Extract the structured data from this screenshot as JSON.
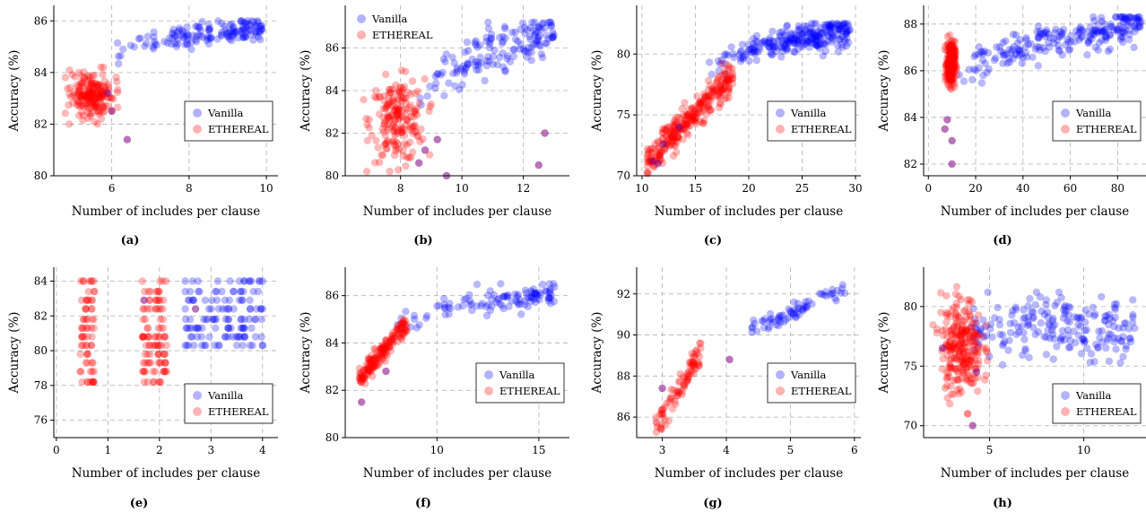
{
  "colors": {
    "vanilla": "#0000ff",
    "ethereal": "#ff0000",
    "grid": "#b0b0b0"
  },
  "chart_data": [
    {
      "type": "scatter",
      "caption": "(a)",
      "xlabel": "Number of includes per clause",
      "ylabel": "Accuracy (%)",
      "xlim": [
        4.5,
        10.3
      ],
      "ylim": [
        80,
        86.6
      ],
      "xticks": [
        6,
        8,
        10
      ],
      "yticks": [
        80,
        82,
        84,
        86
      ],
      "legend_loc": "center-right",
      "series": [
        {
          "name": "Vanilla",
          "color": "#0000ff",
          "cloud": {
            "n": 150,
            "x": [
              6.0,
              9.9
            ],
            "y": [
              83.8,
              86.0
            ],
            "shape": "log"
          }
        },
        {
          "name": "ETHEREAL",
          "color": "#ff0000",
          "cloud": {
            "n": 200,
            "x": [
              4.8,
              6.2
            ],
            "y": [
              82.0,
              84.2
            ],
            "shape": "blob"
          }
        }
      ],
      "outliers": [
        [
          6.4,
          81.4
        ],
        [
          5.9,
          83.2
        ],
        [
          6.0,
          82.5
        ]
      ]
    },
    {
      "type": "scatter",
      "caption": "(b)",
      "xlabel": "Number of includes per clause",
      "ylabel": "Accuracy (%)",
      "xlim": [
        6.2,
        13.5
      ],
      "ylim": [
        80,
        88
      ],
      "xticks": [
        8,
        10,
        12
      ],
      "yticks": [
        80,
        82,
        84,
        86
      ],
      "legend_loc": "top-left",
      "series": [
        {
          "name": "Vanilla",
          "color": "#0000ff",
          "cloud": {
            "n": 150,
            "x": [
              8.5,
              13.0
            ],
            "y": [
              81.5,
              87.2
            ],
            "shape": "log"
          }
        },
        {
          "name": "ETHEREAL",
          "color": "#ff0000",
          "cloud": {
            "n": 190,
            "x": [
              6.8,
              9.0
            ],
            "y": [
              80.2,
              85.0
            ],
            "shape": "blob"
          }
        }
      ],
      "outliers": [
        [
          8.8,
          81.2
        ],
        [
          8.6,
          80.6
        ],
        [
          12.5,
          80.5
        ],
        [
          9.5,
          80.0
        ],
        [
          12.7,
          82.0
        ],
        [
          9.2,
          81.7
        ]
      ]
    },
    {
      "type": "scatter",
      "caption": "(c)",
      "xlabel": "Number of includes per clause",
      "ylabel": "Accuracy (%)",
      "xlim": [
        9.5,
        30.5
      ],
      "ylim": [
        70,
        84
      ],
      "xticks": [
        10,
        15,
        20,
        25,
        30
      ],
      "yticks": [
        70,
        75,
        80
      ],
      "legend_loc": "center-right",
      "series": [
        {
          "name": "Vanilla",
          "color": "#0000ff",
          "cloud": {
            "n": 260,
            "x": [
              16.0,
              29.5
            ],
            "y": [
              76.5,
              82.5
            ],
            "shape": "log"
          }
        },
        {
          "name": "ETHEREAL",
          "color": "#ff0000",
          "cloud": {
            "n": 300,
            "x": [
              10.5,
              18.5
            ],
            "y": [
              70.2,
              79.2
            ],
            "shape": "rise"
          }
        }
      ],
      "outliers": [
        [
          11.0,
          71.2
        ],
        [
          11.5,
          71.0
        ],
        [
          13.5,
          74.0
        ],
        [
          12.0,
          72.6
        ]
      ]
    },
    {
      "type": "scatter",
      "caption": "(d)",
      "xlabel": "Number of includes per clause",
      "ylabel": "Accuracy (%)",
      "xlim": [
        -2,
        92
      ],
      "ylim": [
        81.5,
        88.8
      ],
      "xticks": [
        0,
        20,
        40,
        60,
        80
      ],
      "yticks": [
        82,
        84,
        86,
        88
      ],
      "legend_loc": "center-right",
      "series": [
        {
          "name": "Vanilla",
          "color": "#0000ff",
          "cloud": {
            "n": 220,
            "x": [
              12,
              90
            ],
            "y": [
              84.5,
              88.3
            ],
            "shape": "log"
          }
        },
        {
          "name": "ETHEREAL",
          "color": "#ff0000",
          "cloud": {
            "n": 250,
            "x": [
              7,
              12
            ],
            "y": [
              85.0,
              87.6
            ],
            "shape": "column"
          }
        }
      ],
      "outliers": [
        [
          8,
          83.9
        ],
        [
          10,
          83.0
        ],
        [
          10,
          82.0
        ],
        [
          7,
          83.5
        ]
      ]
    },
    {
      "type": "scatter",
      "caption": "(e)",
      "xlabel": "Number of includes per clause",
      "ylabel": "Accuracy (%)",
      "xlim": [
        -0.05,
        4.3
      ],
      "ylim": [
        75,
        84.8
      ],
      "xticks": [
        0,
        1,
        2,
        3,
        4
      ],
      "yticks": [
        76,
        78,
        80,
        82,
        84
      ],
      "legend_loc": "bottom-right",
      "series": [
        {
          "name": "Vanilla",
          "color": "#0000ff",
          "cloud": {
            "n": 130,
            "x": [
              2.5,
              4.0
            ],
            "y": [
              79.8,
              84.0
            ],
            "shape": "rows"
          }
        },
        {
          "name": "ETHEREAL",
          "color": "#ff0000",
          "cloud": {
            "n": 170,
            "x": [
              0.4,
              2.2
            ],
            "y": [
              78.2,
              84.0
            ],
            "shape": "rows2"
          }
        }
      ],
      "outliers": [
        [
          2.7,
          82.4
        ],
        [
          1.7,
          82.9
        ]
      ]
    },
    {
      "type": "scatter",
      "caption": "(f)",
      "xlabel": "Number of includes per clause",
      "ylabel": "Accuracy (%)",
      "xlim": [
        5.5,
        16.5
      ],
      "ylim": [
        80,
        87.2
      ],
      "xticks": [
        10,
        15
      ],
      "yticks": [
        80,
        82,
        84,
        86
      ],
      "legend_loc": "center-right",
      "series": [
        {
          "name": "Vanilla",
          "color": "#0000ff",
          "cloud": {
            "n": 110,
            "x": [
              7.5,
              15.8
            ],
            "y": [
              83.5,
              86.5
            ],
            "shape": "log"
          }
        },
        {
          "name": "ETHEREAL",
          "color": "#ff0000",
          "cloud": {
            "n": 170,
            "x": [
              6.2,
              8.5
            ],
            "y": [
              82.2,
              85.1
            ],
            "shape": "rise"
          }
        }
      ],
      "outliers": [
        [
          6.3,
          81.5
        ],
        [
          7.5,
          82.8
        ]
      ]
    },
    {
      "type": "scatter",
      "caption": "(g)",
      "xlabel": "Number of includes per clause",
      "ylabel": "Accuracy (%)",
      "xlim": [
        2.6,
        6.1
      ],
      "ylim": [
        85,
        93.3
      ],
      "xticks": [
        3,
        4,
        5,
        6
      ],
      "yticks": [
        86,
        88,
        90,
        92
      ],
      "legend_loc": "center-right",
      "series": [
        {
          "name": "Vanilla",
          "color": "#0000ff",
          "cloud": {
            "n": 70,
            "x": [
              4.4,
              5.85
            ],
            "y": [
              89.8,
              92.7
            ],
            "shape": "rise"
          }
        },
        {
          "name": "ETHEREAL",
          "color": "#ff0000",
          "cloud": {
            "n": 90,
            "x": [
              2.9,
              3.6
            ],
            "y": [
              85.0,
              89.6
            ],
            "shape": "rise"
          }
        }
      ],
      "outliers": [
        [
          4.05,
          88.8
        ],
        [
          3.0,
          87.4
        ]
      ]
    },
    {
      "type": "scatter",
      "caption": "(h)",
      "xlabel": "Number of includes per clause",
      "ylabel": "Accuracy (%)",
      "xlim": [
        1.5,
        13.3
      ],
      "ylim": [
        69,
        83.3
      ],
      "xticks": [
        5,
        10
      ],
      "yticks": [
        70,
        75,
        80
      ],
      "legend_loc": "bottom-right",
      "series": [
        {
          "name": "Vanilla",
          "color": "#0000ff",
          "cloud": {
            "n": 200,
            "x": [
              4.0,
              12.8
            ],
            "y": [
              75.0,
              81.2
            ],
            "shape": "band"
          }
        },
        {
          "name": "ETHEREAL",
          "color": "#ff0000",
          "cloud": {
            "n": 260,
            "x": [
              2.0,
              5.0
            ],
            "y": [
              71.0,
              82.3
            ],
            "shape": "column"
          }
        }
      ],
      "outliers": [
        [
          4.1,
          70.0
        ],
        [
          4.3,
          74.5
        ],
        [
          2.5,
          76.5
        ]
      ]
    }
  ]
}
